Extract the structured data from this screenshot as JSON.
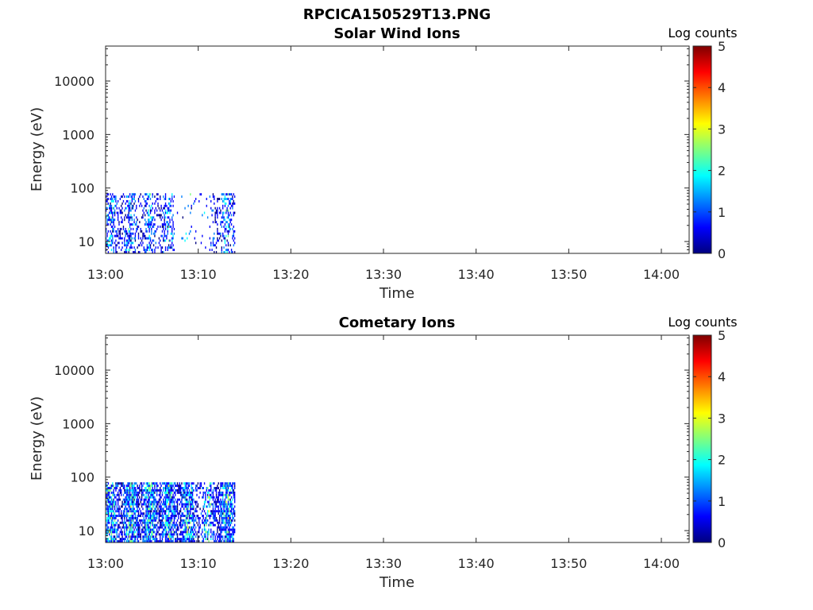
{
  "title": "RPCICA150529T13.PNG",
  "colormap": [
    "#00007f",
    "#0000ff",
    "#007fff",
    "#00ffff",
    "#7fff7f",
    "#ffff00",
    "#ff7f00",
    "#ff0000",
    "#7f0000"
  ],
  "chart_data": [
    {
      "type": "heatmap",
      "title": "Solar Wind Ions",
      "xlabel": "Time",
      "ylabel": "Energy (eV)",
      "x_range": [
        "13:00",
        "14:03"
      ],
      "x_ticks": [
        "13:00",
        "13:10",
        "13:20",
        "13:30",
        "13:40",
        "13:50",
        "14:00"
      ],
      "y_scale": "log",
      "y_range": [
        6,
        45000
      ],
      "y_ticks": [
        10,
        100,
        1000,
        10000
      ],
      "y_tick_labels": [
        "10",
        "100",
        "1000",
        "10000"
      ],
      "colorbar": {
        "label": "Log counts",
        "range": [
          0,
          5
        ],
        "ticks": [
          "0",
          "1",
          "2",
          "3",
          "4",
          "5"
        ]
      },
      "data_extent": {
        "time": [
          "13:00",
          "13:14"
        ],
        "energy": [
          6,
          80
        ]
      },
      "value_range": [
        0,
        2.5
      ]
    },
    {
      "type": "heatmap",
      "title": "Cometary Ions",
      "xlabel": "Time",
      "ylabel": "Energy (eV)",
      "x_range": [
        "13:00",
        "14:03"
      ],
      "x_ticks": [
        "13:00",
        "13:10",
        "13:20",
        "13:30",
        "13:40",
        "13:50",
        "14:00"
      ],
      "y_scale": "log",
      "y_range": [
        6,
        45000
      ],
      "y_ticks": [
        10,
        100,
        1000,
        10000
      ],
      "y_tick_labels": [
        "10",
        "100",
        "1000",
        "10000"
      ],
      "colorbar": {
        "label": "Log counts",
        "range": [
          0,
          5
        ],
        "ticks": [
          "0",
          "1",
          "2",
          "3",
          "4",
          "5"
        ]
      },
      "data_extent": {
        "time": [
          "13:00",
          "13:14"
        ],
        "energy": [
          6,
          80
        ]
      },
      "value_range": [
        0,
        3
      ]
    }
  ]
}
